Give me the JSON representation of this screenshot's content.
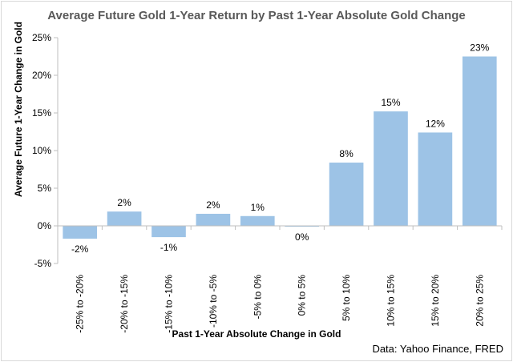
{
  "chart_data": {
    "type": "bar",
    "title": "Average Future Gold 1-Year Return by Past 1-Year Absolute Gold Change",
    "xlabel": "Past 1-Year Absolute Change in Gold",
    "ylabel": "Average Future 1-Year Change in  Gold",
    "source": "Data: Yahoo Finance, FRED",
    "categories": [
      "-25% to -20%",
      "-20% to -15%",
      "-15% to -10%",
      "-10% to -5%",
      "-5% to 0%",
      "0% to 5%",
      "5% to 10%",
      "10% to 15%",
      "15% to 20%",
      "20% to 25%"
    ],
    "values": [
      -1.7,
      1.9,
      -1.5,
      1.6,
      1.3,
      -0.1,
      8.4,
      15.2,
      12.4,
      22.5
    ],
    "data_labels": [
      "-2%",
      "2%",
      "-1%",
      "2%",
      "1%",
      "0%",
      "8%",
      "15%",
      "12%",
      "23%"
    ],
    "ylim": [
      -5,
      25
    ],
    "y_ticks": [
      -5,
      0,
      5,
      10,
      15,
      20,
      25
    ],
    "y_tick_labels": [
      "-5%",
      "0%",
      "5%",
      "10%",
      "15%",
      "20%",
      "25%"
    ],
    "grid": false,
    "legend": "none",
    "bar_color": "#9dc3e6"
  }
}
